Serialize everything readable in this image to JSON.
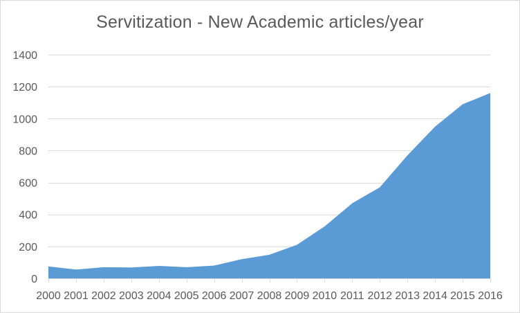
{
  "chart_data": {
    "type": "area",
    "title": "Servitization - New Academic articles/year",
    "x": [
      "2000",
      "2001",
      "2002",
      "2003",
      "2004",
      "2005",
      "2006",
      "2007",
      "2008",
      "2009",
      "2010",
      "2011",
      "2012",
      "2013",
      "2014",
      "2015",
      "2016"
    ],
    "series": [
      {
        "values": [
          75,
          55,
          70,
          68,
          78,
          70,
          80,
          120,
          148,
          210,
          325,
          470,
          570,
          770,
          950,
          1090,
          1160
        ],
        "color": "#5b9bd5"
      }
    ],
    "xlabel": "",
    "ylabel": "",
    "ylim": [
      0,
      1400
    ],
    "yticks": [
      "0",
      "200",
      "400",
      "600",
      "800",
      "1000",
      "1200",
      "1400"
    ],
    "grid": true,
    "legend": "none",
    "gridline_color": "#d9d9d9",
    "text_color": "#595959"
  }
}
